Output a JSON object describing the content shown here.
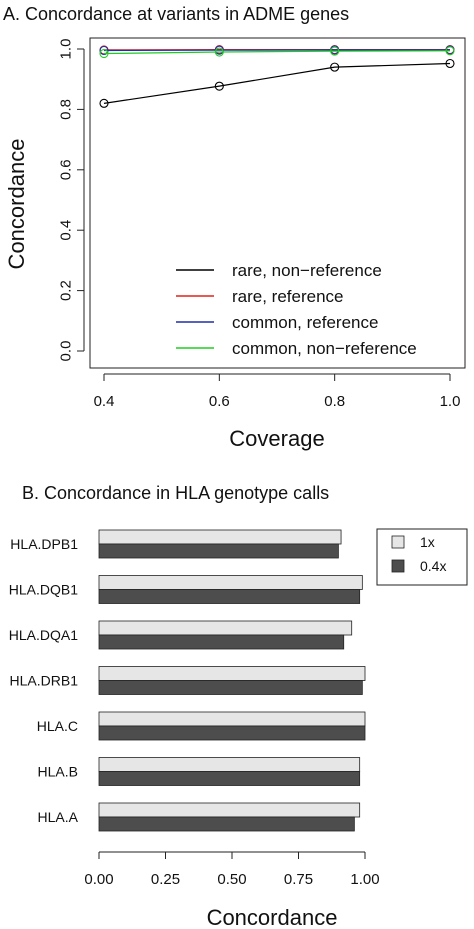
{
  "chart_data": [
    {
      "type": "line",
      "title": "A. Concordance at variants in ADME genes",
      "xlabel": "Coverage",
      "ylabel": "Concordance",
      "x": [
        0.4,
        0.6,
        0.8,
        1.0
      ],
      "xticks": [
        "0.4",
        "0.6",
        "0.8",
        "1.0"
      ],
      "yticks": [
        "0.0",
        "0.2",
        "0.4",
        "0.6",
        "0.8",
        "1.0"
      ],
      "xlim": [
        0.4,
        1.0
      ],
      "ylim": [
        0,
        1.0
      ],
      "grid": false,
      "legend_position": "bottom-right",
      "series": [
        {
          "name": "rare, non−reference",
          "color": "#000000",
          "values": [
            0.82,
            0.877,
            0.94,
            0.952
          ]
        },
        {
          "name": "rare, reference",
          "color": "#e0201b",
          "values": [
            0.997,
            0.998,
            0.998,
            0.998
          ]
        },
        {
          "name": "common, reference",
          "color": "#1f2fa6",
          "values": [
            0.995,
            0.996,
            0.997,
            0.997
          ]
        },
        {
          "name": "common, non−reference",
          "color": "#22cc22",
          "values": [
            0.985,
            0.99,
            0.993,
            0.994
          ]
        }
      ]
    },
    {
      "type": "bar",
      "orientation": "horizontal",
      "title": "B. Concordance in HLA genotype calls",
      "xlabel": "Concordance",
      "ylabel": "",
      "categories": [
        "HLA.DPB1",
        "HLA.DQB1",
        "HLA.DQA1",
        "HLA.DRB1",
        "HLA.C",
        "HLA.B",
        "HLA.A"
      ],
      "xticks": [
        "0.00",
        "0.25",
        "0.50",
        "0.75",
        "1.00"
      ],
      "xlim": [
        0,
        1.0
      ],
      "grid": false,
      "legend_position": "top-right",
      "series": [
        {
          "name": "1x",
          "color": "#e6e6e6",
          "values": [
            0.91,
            0.99,
            0.95,
            1.0,
            1.0,
            0.98,
            0.98
          ]
        },
        {
          "name": "0.4x",
          "color": "#4d4d4d",
          "values": [
            0.9,
            0.98,
            0.92,
            0.99,
            1.0,
            0.98,
            0.96
          ]
        }
      ]
    }
  ]
}
